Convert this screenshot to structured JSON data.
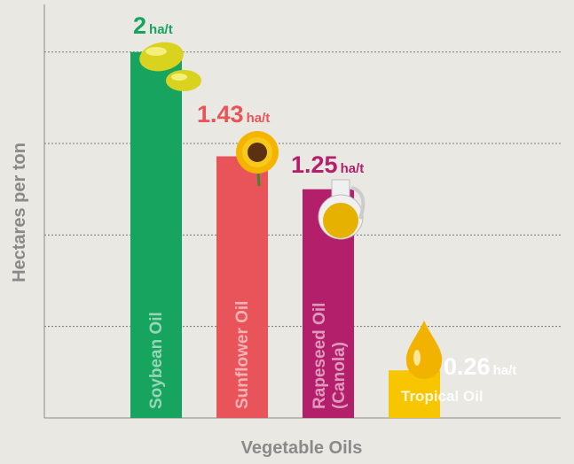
{
  "chart_data": {
    "type": "bar",
    "x_label": "Vegetable Oils",
    "y_label": "Hectares per ton",
    "categories": [
      "Soybean Oil",
      "Sunflower Oil",
      "Rapeseed Oil (Canola)",
      "Tropical Oil"
    ],
    "values": [
      2,
      1.43,
      1.25,
      0.26
    ],
    "value_unit": "ha/t",
    "colors": [
      "#17a45e",
      "#e8545a",
      "#b41f6b",
      "#f7c600"
    ],
    "ylim": [
      0,
      2.26
    ],
    "yticks": [
      0.5,
      1,
      1.5,
      2
    ],
    "grid": true
  }
}
